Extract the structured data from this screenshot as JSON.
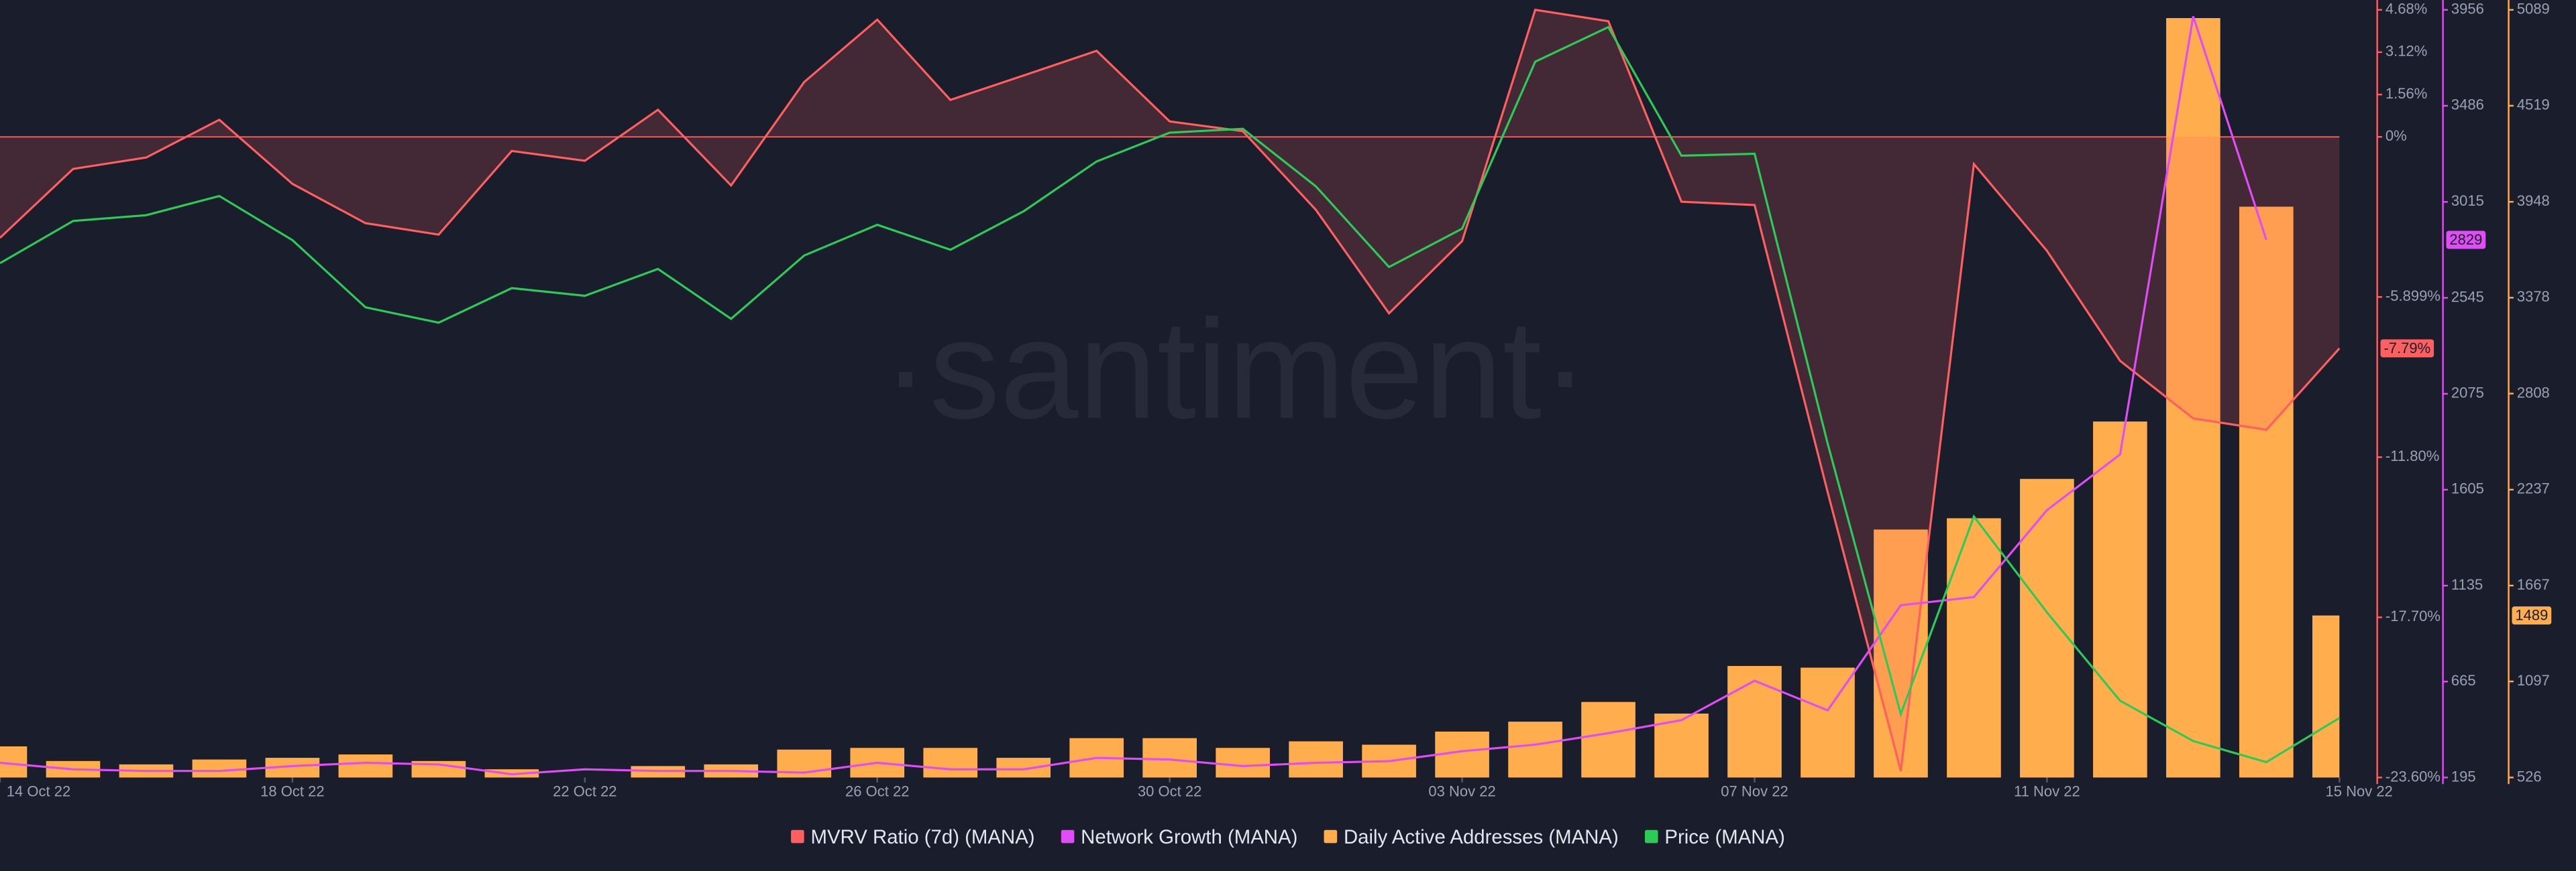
{
  "chart_data": {
    "type": "line",
    "watermark": "·santiment·",
    "categories": [
      "14 Oct 22",
      null,
      null,
      null,
      "18 Oct 22",
      null,
      null,
      null,
      "22 Oct 22",
      null,
      null,
      null,
      "26 Oct 22",
      null,
      null,
      null,
      "30 Oct 22",
      null,
      null,
      null,
      "03 Nov 22",
      null,
      null,
      null,
      "07 Nov 22",
      null,
      null,
      null,
      "11 Nov 22",
      null,
      null,
      null,
      "15 Nov 22"
    ],
    "ylim": [
      -23.6,
      4.68
    ],
    "yticks": [
      {
        "value": 4.68,
        "label": "4.68%"
      },
      {
        "value": 3.12,
        "label": "3.12%"
      },
      {
        "value": 1.56,
        "label": "1.56%"
      },
      {
        "value": 0,
        "label": "0%"
      },
      {
        "value": -5.899,
        "label": "-5.899%"
      },
      {
        "value": -11.8,
        "label": "-11.80%"
      },
      {
        "value": -17.7,
        "label": "-17.70%"
      },
      {
        "value": -23.6,
        "label": "-23.60%"
      }
    ],
    "y2lim": [
      195,
      3956
    ],
    "y2ticks": [
      195,
      665,
      1135,
      1605,
      2075,
      2545,
      3015,
      3486,
      3956
    ],
    "y3lim": [
      526,
      5089
    ],
    "y3ticks": [
      526,
      1097,
      1667,
      2237,
      2808,
      3378,
      3948,
      4519,
      5089
    ],
    "y4lim": [
      0.35,
      0.75
    ],
    "series": [
      {
        "name": "Daily Active Addresses (MANA)",
        "type": "bar",
        "axis": "y3",
        "color": "#ffad4d",
        "values": [
          711,
          624,
          604,
          633,
          643,
          663,
          624,
          575,
          526,
          594,
          604,
          692,
          702,
          702,
          643,
          760,
          760,
          702,
          741,
          721,
          799,
          858,
          975,
          906,
          1189,
          1179,
          2000,
          2067,
          2301,
          2642,
          5040,
          3919,
          1489
        ]
      },
      {
        "name": "MVRV Ratio (7d) (MANA)",
        "type": "line",
        "axis": "y",
        "area": true,
        "color": "#ff5f5f",
        "values": [
          -3.72,
          -1.18,
          -0.76,
          0.63,
          -1.73,
          -3.18,
          -3.6,
          -0.52,
          -0.88,
          1.0,
          -1.79,
          2.02,
          4.32,
          1.36,
          2.26,
          3.17,
          0.57,
          0.21,
          -2.69,
          -6.5,
          -3.84,
          4.68,
          4.26,
          -2.39,
          -2.51,
          -13.09,
          -23.36,
          -1.0,
          -4.2,
          -8.25,
          -10.37,
          -10.79,
          -7.79
        ],
        "value_labels": [
          null,
          null,
          null,
          null,
          null,
          null,
          null,
          null,
          null,
          null,
          null,
          null,
          null,
          null,
          null,
          null,
          null,
          null,
          null,
          null,
          null,
          null,
          null,
          null,
          null,
          null,
          null,
          null,
          null,
          null,
          null,
          null,
          "-7.79%"
        ]
      },
      {
        "name": "Network Growth (MANA)",
        "type": "line",
        "axis": "y2",
        "color": "#e04cf5",
        "values": [
          267,
          235,
          227,
          227,
          251,
          267,
          259,
          211,
          235,
          227,
          227,
          219,
          267,
          235,
          235,
          291,
          283,
          251,
          267,
          275,
          324,
          356,
          412,
          476,
          669,
          524,
          1039,
          1079,
          1505,
          1778,
          3924,
          2829,
          null
        ]
      },
      {
        "name": "Price (MANA)",
        "type": "line",
        "axis": "y4",
        "color": "#2ccb57",
        "values": [
          0.618,
          0.64,
          0.643,
          0.653,
          0.63,
          0.595,
          0.587,
          0.605,
          0.601,
          0.615,
          0.589,
          0.622,
          0.638,
          0.625,
          0.645,
          0.671,
          0.686,
          0.688,
          0.658,
          0.616,
          0.636,
          0.723,
          0.741,
          0.674,
          0.675,
          0.524,
          0.383,
          0.486,
          0.436,
          0.39,
          0.369,
          0.358,
          0.381
        ]
      }
    ],
    "legend_order": [
      1,
      2,
      0,
      3
    ]
  }
}
